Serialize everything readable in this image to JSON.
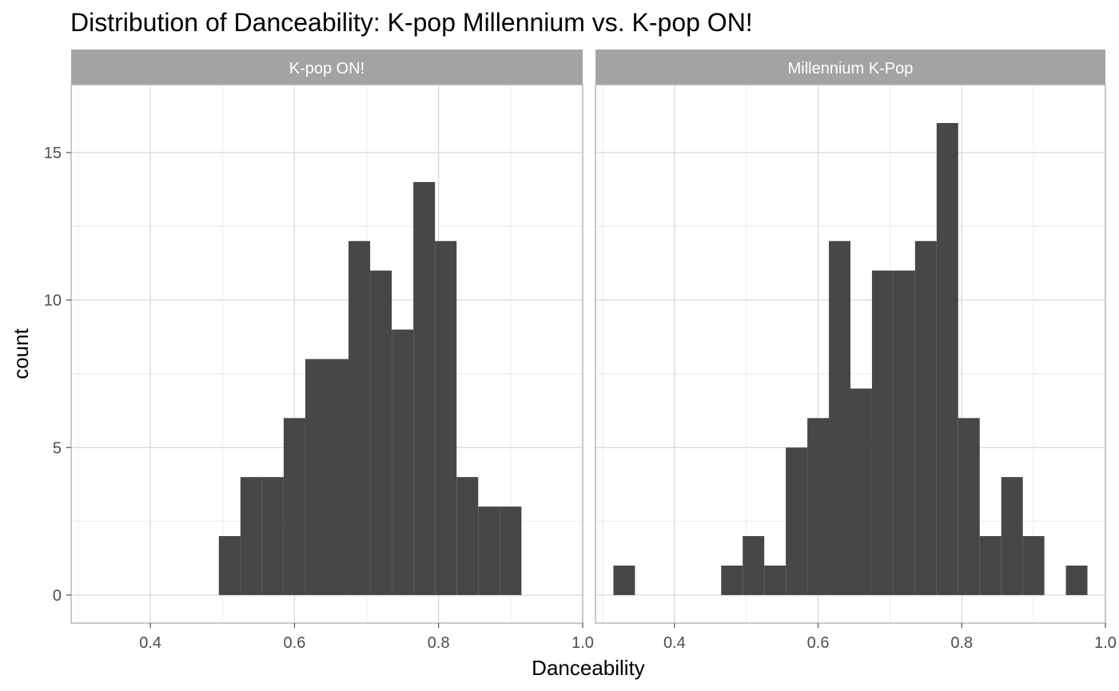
{
  "chart_data": {
    "type": "bar",
    "title": "Distribution of Danceability: K-pop Millennium vs. K-pop ON!",
    "xlabel": "Danceability",
    "ylabel": "count",
    "xlim": [
      0.29,
      1.0
    ],
    "ylim": [
      -0.95,
      17.3
    ],
    "xticks": [
      "0.4",
      "0.6",
      "0.8",
      "1.0"
    ],
    "yticks": [
      "0",
      "5",
      "10",
      "15"
    ],
    "grid": true,
    "bin_width": 0.03,
    "bar_color": "#474747",
    "panels": [
      {
        "label": "K-pop ON!",
        "bins": [
          {
            "x0": 0.495,
            "count": 2
          },
          {
            "x0": 0.525,
            "count": 4
          },
          {
            "x0": 0.555,
            "count": 4
          },
          {
            "x0": 0.585,
            "count": 6
          },
          {
            "x0": 0.615,
            "count": 8
          },
          {
            "x0": 0.645,
            "count": 8
          },
          {
            "x0": 0.675,
            "count": 12
          },
          {
            "x0": 0.705,
            "count": 11
          },
          {
            "x0": 0.735,
            "count": 9
          },
          {
            "x0": 0.765,
            "count": 14
          },
          {
            "x0": 0.795,
            "count": 12
          },
          {
            "x0": 0.825,
            "count": 4
          },
          {
            "x0": 0.855,
            "count": 3
          },
          {
            "x0": 0.885,
            "count": 3
          }
        ]
      },
      {
        "label": "Millennium K-Pop",
        "bins": [
          {
            "x0": 0.315,
            "count": 1
          },
          {
            "x0": 0.465,
            "count": 1
          },
          {
            "x0": 0.495,
            "count": 2
          },
          {
            "x0": 0.525,
            "count": 1
          },
          {
            "x0": 0.555,
            "count": 5
          },
          {
            "x0": 0.585,
            "count": 6
          },
          {
            "x0": 0.615,
            "count": 12
          },
          {
            "x0": 0.645,
            "count": 7
          },
          {
            "x0": 0.675,
            "count": 11
          },
          {
            "x0": 0.705,
            "count": 11
          },
          {
            "x0": 0.735,
            "count": 12
          },
          {
            "x0": 0.765,
            "count": 16
          },
          {
            "x0": 0.795,
            "count": 6
          },
          {
            "x0": 0.825,
            "count": 2
          },
          {
            "x0": 0.855,
            "count": 4
          },
          {
            "x0": 0.885,
            "count": 2
          },
          {
            "x0": 0.945,
            "count": 1
          }
        ]
      }
    ]
  }
}
